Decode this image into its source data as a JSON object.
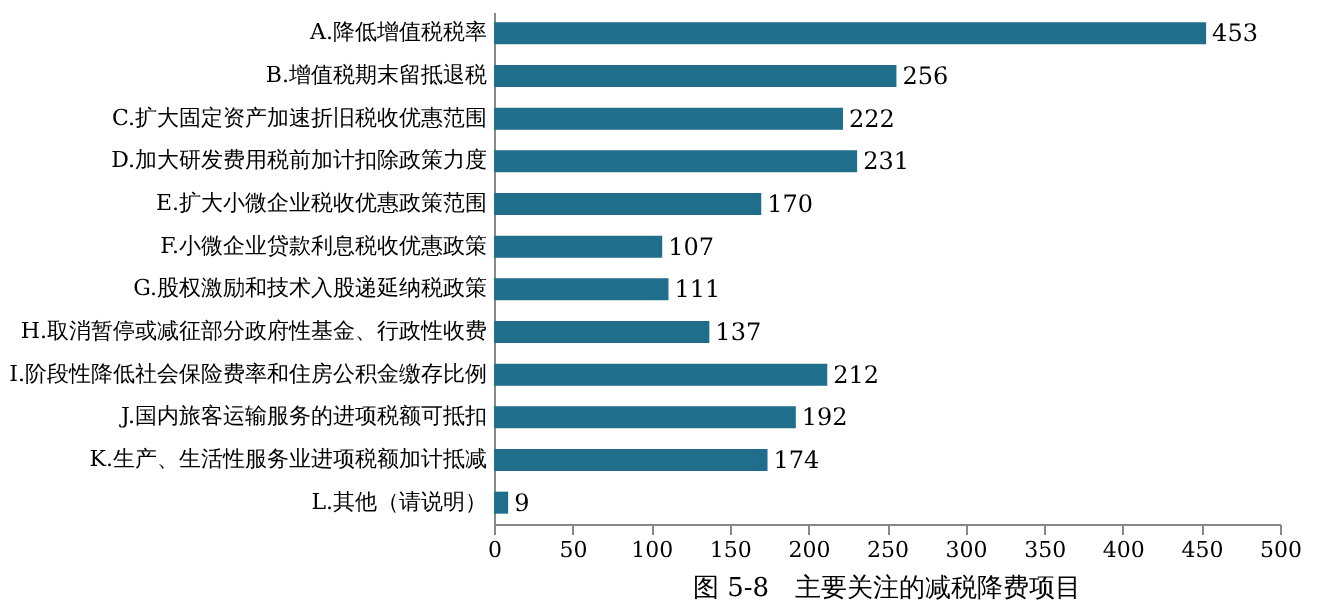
{
  "chart_data": {
    "type": "bar",
    "orientation": "horizontal",
    "title": "图 5-8　主要关注的减税降费项目",
    "categories": [
      "A.降低增值税税率",
      "B.增值税期末留抵退税",
      "C.扩大固定资产加速折旧税收优惠范围",
      "D.加大研发费用税前加计扣除政策力度",
      "E.扩大小微企业税收优惠政策范围",
      "F.小微企业贷款利息税收优惠政策",
      "G.股权激励和技术入股递延纳税政策",
      "H.取消暂停或减征部分政府性基金、行政性收费",
      "I.阶段性降低社会保险费率和住房公积金缴存比例",
      "J.国内旅客运输服务的进项税额可抵扣",
      "K.生产、生活性服务业进项税额加计抵减",
      "L.其他（请说明）"
    ],
    "values": [
      453,
      256,
      222,
      231,
      170,
      107,
      111,
      137,
      212,
      192,
      174,
      9
    ],
    "color": "#1f6e8c",
    "data_labels": true,
    "grid": false,
    "xlim": [
      0,
      500
    ],
    "xticks": [
      0,
      50,
      100,
      150,
      200,
      250,
      300,
      350,
      400,
      450,
      500
    ]
  }
}
